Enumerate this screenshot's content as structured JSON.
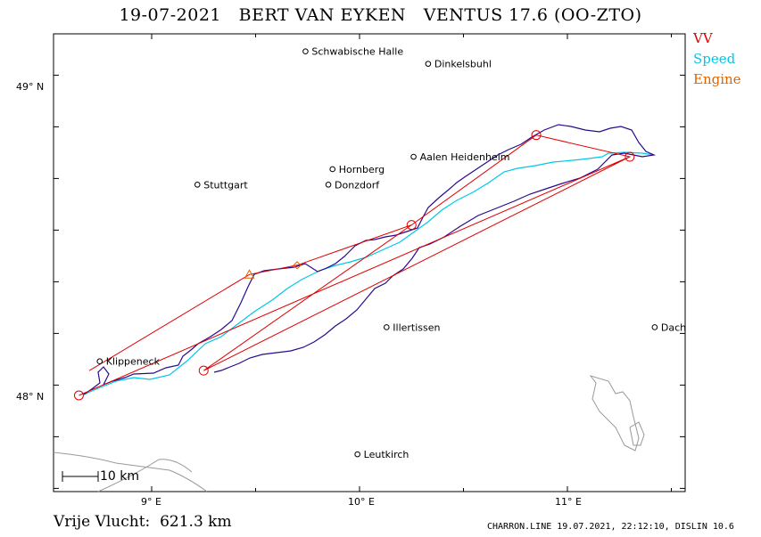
{
  "header": {
    "date": "19-07-2021",
    "pilot": "BERT VAN EYKEN",
    "glider": "VENTUS 17.6 (OO-ZTO)"
  },
  "legend": [
    {
      "label": "VV",
      "color": "#e00000"
    },
    {
      "label": "Speed",
      "color": "#00c8e6"
    },
    {
      "label": "Engine",
      "color": "#e06400"
    }
  ],
  "axes": {
    "lat_labels": [
      "49° N",
      "48° N"
    ],
    "lon_labels": [
      "9° E",
      "10° E",
      "11° E"
    ]
  },
  "scale_bar": {
    "label": "10 km"
  },
  "towns": [
    {
      "name": "Schwabische Halle",
      "lon": 9.74,
      "lat": 49.11
    },
    {
      "name": "Dinkelsbuhl",
      "lon": 10.33,
      "lat": 49.07
    },
    {
      "name": "Aalen Heidenheim",
      "lon": 10.26,
      "lat": 48.77
    },
    {
      "name": "Hornberg",
      "lon": 9.87,
      "lat": 48.73
    },
    {
      "name": "Stuttgart",
      "lon": 9.22,
      "lat": 48.68
    },
    {
      "name": "Donzdorf",
      "lon": 9.85,
      "lat": 48.68
    },
    {
      "name": "Illertissen",
      "lon": 10.13,
      "lat": 48.22
    },
    {
      "name": "Dach",
      "lon": 11.42,
      "lat": 48.22
    },
    {
      "name": "Klippeneck",
      "lon": 8.75,
      "lat": 48.11
    },
    {
      "name": "Leutkirch",
      "lon": 9.99,
      "lat": 47.81
    }
  ],
  "task": {
    "turnpoints": [
      {
        "lon": 8.65,
        "lat": 48.0
      },
      {
        "lon": 11.3,
        "lat": 48.77
      },
      {
        "lon": 9.25,
        "lat": 48.08
      },
      {
        "lon": 10.25,
        "lat": 48.55
      },
      {
        "lon": 10.85,
        "lat": 48.84
      },
      {
        "lon": 11.3,
        "lat": 48.77
      },
      {
        "lon": 9.25,
        "lat": 48.08
      }
    ],
    "start_triangle": {
      "lon": 9.47,
      "lat": 48.39
    },
    "engine_diamond": {
      "lon": 9.7,
      "lat": 48.42
    },
    "leg_from_triangle": [
      {
        "lon": 8.7,
        "lat": 48.08
      },
      {
        "lon": 9.47,
        "lat": 48.39
      },
      {
        "lon": 9.7,
        "lat": 48.42
      },
      {
        "lon": 10.25,
        "lat": 48.55
      }
    ]
  },
  "distance": {
    "label": "Vrije Vlucht:",
    "value": "621.3 km"
  },
  "footer": {
    "text": "CHARRON.LINE 19.07.2021, 22:12:10, DISLIN 10.6"
  }
}
